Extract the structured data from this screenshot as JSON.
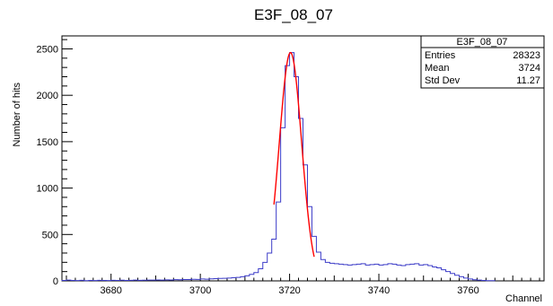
{
  "chart_data": {
    "type": "histogram",
    "title": "E3F_08_07",
    "xlabel": "Channel",
    "ylabel": "Number of hits",
    "xlim": [
      3669,
      3777
    ],
    "ylim": [
      0,
      2640
    ],
    "x_ticks": [
      3680,
      3700,
      3720,
      3740,
      3760
    ],
    "y_ticks": [
      0,
      500,
      1000,
      1500,
      2000,
      2500
    ],
    "histogram": {
      "color": "#3c3cc8",
      "bins": [
        [
          3669,
          5
        ],
        [
          3670,
          8
        ],
        [
          3671,
          5
        ],
        [
          3672,
          4
        ],
        [
          3673,
          6
        ],
        [
          3674,
          3
        ],
        [
          3675,
          5
        ],
        [
          3676,
          4
        ],
        [
          3677,
          6
        ],
        [
          3678,
          5
        ],
        [
          3679,
          4
        ],
        [
          3680,
          6
        ],
        [
          3681,
          5
        ],
        [
          3682,
          7
        ],
        [
          3683,
          5
        ],
        [
          3684,
          6
        ],
        [
          3685,
          8
        ],
        [
          3686,
          6
        ],
        [
          3687,
          7
        ],
        [
          3688,
          9
        ],
        [
          3689,
          8
        ],
        [
          3690,
          10
        ],
        [
          3691,
          9
        ],
        [
          3692,
          11
        ],
        [
          3693,
          10
        ],
        [
          3694,
          13
        ],
        [
          3695,
          12
        ],
        [
          3696,
          15
        ],
        [
          3697,
          14
        ],
        [
          3698,
          17
        ],
        [
          3699,
          16
        ],
        [
          3700,
          20
        ],
        [
          3701,
          18
        ],
        [
          3702,
          22
        ],
        [
          3703,
          24
        ],
        [
          3704,
          26
        ],
        [
          3705,
          28
        ],
        [
          3706,
          30
        ],
        [
          3707,
          34
        ],
        [
          3708,
          38
        ],
        [
          3709,
          45
        ],
        [
          3710,
          55
        ],
        [
          3711,
          70
        ],
        [
          3712,
          90
        ],
        [
          3713,
          130
        ],
        [
          3714,
          200
        ],
        [
          3715,
          300
        ],
        [
          3716,
          450
        ],
        [
          3717,
          850
        ],
        [
          3718,
          1650
        ],
        [
          3719,
          2320
        ],
        [
          3720,
          2460
        ],
        [
          3721,
          2200
        ],
        [
          3722,
          1750
        ],
        [
          3723,
          1250
        ],
        [
          3724,
          800
        ],
        [
          3725,
          480
        ],
        [
          3726,
          310
        ],
        [
          3727,
          230
        ],
        [
          3728,
          200
        ],
        [
          3729,
          190
        ],
        [
          3730,
          185
        ],
        [
          3731,
          180
        ],
        [
          3732,
          175
        ],
        [
          3733,
          170
        ],
        [
          3734,
          175
        ],
        [
          3735,
          180
        ],
        [
          3736,
          185
        ],
        [
          3737,
          170
        ],
        [
          3738,
          175
        ],
        [
          3739,
          180
        ],
        [
          3740,
          170
        ],
        [
          3741,
          175
        ],
        [
          3742,
          185
        ],
        [
          3743,
          180
        ],
        [
          3744,
          170
        ],
        [
          3745,
          165
        ],
        [
          3746,
          175
        ],
        [
          3747,
          180
        ],
        [
          3748,
          185
        ],
        [
          3749,
          170
        ],
        [
          3750,
          175
        ],
        [
          3751,
          165
        ],
        [
          3752,
          150
        ],
        [
          3753,
          140
        ],
        [
          3754,
          120
        ],
        [
          3755,
          100
        ],
        [
          3756,
          80
        ],
        [
          3757,
          60
        ],
        [
          3758,
          45
        ],
        [
          3759,
          30
        ],
        [
          3760,
          20
        ],
        [
          3761,
          12
        ],
        [
          3762,
          8
        ],
        [
          3763,
          5
        ],
        [
          3764,
          3
        ],
        [
          3765,
          2
        ]
      ]
    },
    "fit": {
      "type": "gaussian",
      "color": "#ff0000",
      "amplitude": 2460,
      "mean": 3720.2,
      "sigma": 2.5,
      "range": [
        3716.5,
        3725.5
      ]
    },
    "stats_box": {
      "title": "E3F_08_07",
      "rows": [
        {
          "label": "Entries",
          "value": "28323"
        },
        {
          "label": "Mean",
          "value": "3724"
        },
        {
          "label": "Std Dev",
          "value": "11.27"
        }
      ]
    }
  }
}
